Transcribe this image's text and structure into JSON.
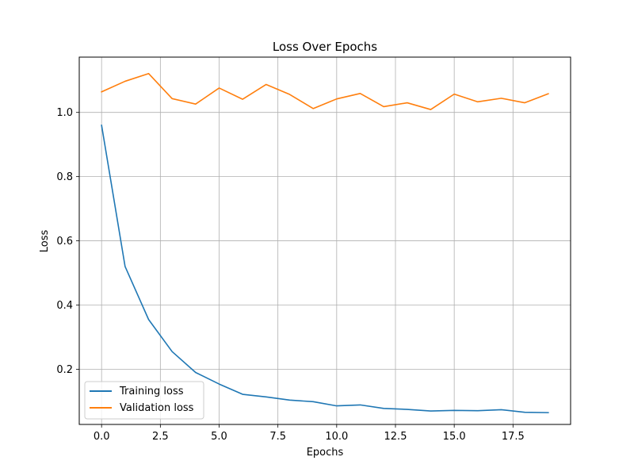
{
  "chart_data": {
    "type": "line",
    "title": "Loss Over Epochs",
    "xlabel": "Epochs",
    "ylabel": "Loss",
    "xlim": [
      -0.95,
      19.95
    ],
    "ylim": [
      0.0282,
      1.1722
    ],
    "xticks": [
      0.0,
      2.5,
      5.0,
      7.5,
      10.0,
      12.5,
      15.0,
      17.5
    ],
    "xtick_labels": [
      "0.0",
      "2.5",
      "5.0",
      "7.5",
      "10.0",
      "12.5",
      "15.0",
      "17.5"
    ],
    "yticks": [
      0.2,
      0.4,
      0.6,
      0.8,
      1.0
    ],
    "ytick_labels": [
      "0.2",
      "0.4",
      "0.6",
      "0.8",
      "1.0"
    ],
    "grid": true,
    "legend_position": "lower-left",
    "x": [
      0,
      1,
      2,
      3,
      4,
      5,
      6,
      7,
      8,
      9,
      10,
      11,
      12,
      13,
      14,
      15,
      16,
      17,
      18,
      19
    ],
    "series": [
      {
        "name": "Training loss",
        "color": "#1f77b4",
        "values": [
          0.96,
          0.52,
          0.355,
          0.255,
          0.19,
          0.154,
          0.122,
          0.114,
          0.104,
          0.099,
          0.086,
          0.089,
          0.078,
          0.075,
          0.07,
          0.072,
          0.071,
          0.074,
          0.066,
          0.065
        ]
      },
      {
        "name": "Validation loss",
        "color": "#ff7f0e",
        "values": [
          1.064,
          1.097,
          1.121,
          1.043,
          1.026,
          1.076,
          1.041,
          1.087,
          1.056,
          1.012,
          1.042,
          1.059,
          1.018,
          1.03,
          1.009,
          1.057,
          1.033,
          1.044,
          1.03,
          1.058
        ]
      }
    ]
  }
}
